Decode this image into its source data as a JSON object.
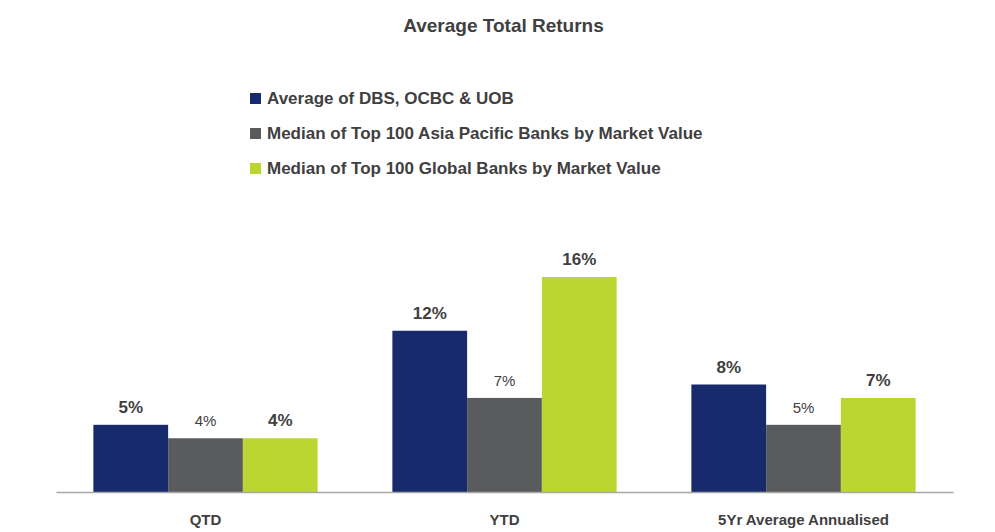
{
  "chart_data": {
    "type": "bar",
    "title": "Average Total Returns",
    "categories": [
      "QTD",
      "YTD",
      "5Yr Average Annualised"
    ],
    "series": [
      {
        "name": "Average of DBS, OCBC & UOB",
        "color": "#172a6e",
        "values": [
          5,
          12,
          8
        ],
        "value_labels": [
          "5%",
          "12%",
          "8%"
        ]
      },
      {
        "name": "Median of Top 100 Asia Pacific Banks by Market Value",
        "color": "#5a5b5d",
        "values": [
          4,
          7,
          5
        ],
        "value_labels": [
          "4%",
          "7%",
          "5%"
        ]
      },
      {
        "name": "Median of Top 100 Global Banks by Market Value",
        "color": "#bcd631",
        "values": [
          4,
          16,
          7
        ],
        "value_labels": [
          "4%",
          "16%",
          "7%"
        ]
      }
    ],
    "ylim": [
      0,
      16
    ],
    "grid": false,
    "legend": "top",
    "data_labels": true,
    "tick_labels": "x"
  }
}
